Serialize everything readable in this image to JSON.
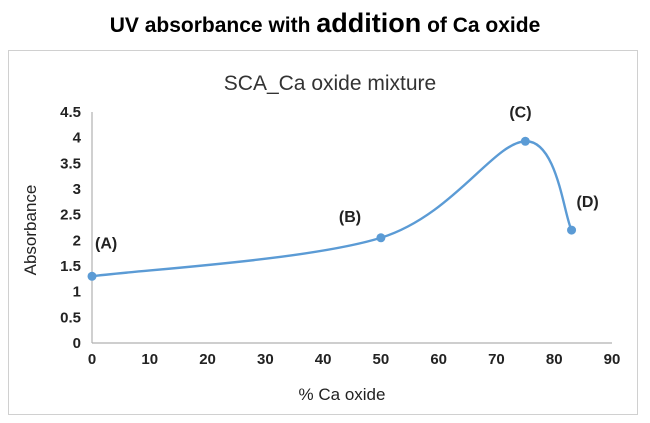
{
  "heading": {
    "part1": "UV absorbance with ",
    "part2": "addition",
    "part3": " of Ca oxide"
  },
  "colors": {
    "series": "#5b9bd5",
    "axis": "#b0b0b0"
  },
  "chart_data": {
    "type": "line",
    "title": "SCA_Ca oxide mixture",
    "xlabel": "% Ca oxide",
    "ylabel": "Absorbance",
    "xlim": [
      0,
      90
    ],
    "ylim": [
      0,
      4.5
    ],
    "xticks": [
      0,
      10,
      20,
      30,
      40,
      50,
      60,
      70,
      80,
      90
    ],
    "yticks": [
      0,
      0.5,
      1,
      1.5,
      2,
      2.5,
      3,
      3.5,
      4,
      4.5
    ],
    "grid": false,
    "smoothed": true,
    "series": [
      {
        "points": [
          {
            "x": 0,
            "y": 1.3,
            "label": "(A)"
          },
          {
            "x": 50,
            "y": 2.05,
            "label": "(B)"
          },
          {
            "x": 75,
            "y": 3.93,
            "label": "(C)"
          },
          {
            "x": 83,
            "y": 2.2,
            "label": "(D)"
          }
        ]
      }
    ]
  }
}
